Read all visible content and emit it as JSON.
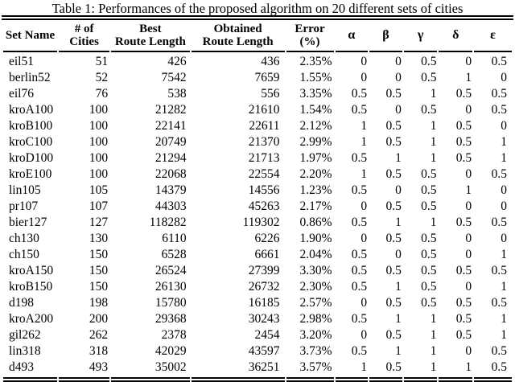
{
  "caption": "Table 1: Performances of the proposed algorithm on 20 different sets of cities",
  "chart_data": {
    "type": "table",
    "title": "Table 1: Performances of the proposed algorithm on 20 different sets of cities",
    "columns": [
      "Set Name",
      "# of Cities",
      "Best Route Length",
      "Obtained Route Length",
      "Error (%)",
      "α",
      "β",
      "γ",
      "δ",
      "ε"
    ],
    "rows": [
      [
        "eil51",
        51,
        426,
        436,
        "2.35%",
        0,
        0,
        0.5,
        0,
        0.5
      ],
      [
        "berlin52",
        52,
        7542,
        7659,
        "1.55%",
        0,
        0,
        0.5,
        1,
        0
      ],
      [
        "eil76",
        76,
        538,
        556,
        "3.35%",
        0.5,
        0.5,
        1,
        0.5,
        0.5
      ],
      [
        "kroA100",
        100,
        21282,
        21610,
        "1.54%",
        0.5,
        0,
        0.5,
        0,
        0.5
      ],
      [
        "kroB100",
        100,
        22141,
        22611,
        "2.12%",
        1,
        0.5,
        1,
        0.5,
        0
      ],
      [
        "kroC100",
        100,
        20749,
        21370,
        "2.99%",
        1,
        0.5,
        1,
        0.5,
        1
      ],
      [
        "kroD100",
        100,
        21294,
        21713,
        "1.97%",
        0.5,
        1,
        1,
        0.5,
        1
      ],
      [
        "kroE100",
        100,
        22068,
        22554,
        "2.20%",
        1,
        0.5,
        0.5,
        0,
        0.5
      ],
      [
        "lin105",
        105,
        14379,
        14556,
        "1.23%",
        0.5,
        0,
        0.5,
        1,
        0
      ],
      [
        "pr107",
        107,
        44303,
        45263,
        "2.17%",
        0,
        0.5,
        0.5,
        0,
        0
      ],
      [
        "bier127",
        127,
        118282,
        119302,
        "0.86%",
        0.5,
        1,
        1,
        0.5,
        0.5
      ],
      [
        "ch130",
        130,
        6110,
        6226,
        "1.90%",
        0,
        0.5,
        0.5,
        0,
        0
      ],
      [
        "ch150",
        150,
        6528,
        6661,
        "2.04%",
        0.5,
        0,
        0.5,
        0,
        1
      ],
      [
        "kroA150",
        150,
        26524,
        27399,
        "3.30%",
        0.5,
        0.5,
        0.5,
        0.5,
        0.5
      ],
      [
        "kroB150",
        150,
        26130,
        26732,
        "2.30%",
        0.5,
        1,
        0.5,
        0,
        1
      ],
      [
        "d198",
        198,
        15780,
        16185,
        "2.57%",
        0,
        0.5,
        0.5,
        0.5,
        0.5
      ],
      [
        "kroA200",
        200,
        29368,
        30243,
        "2.98%",
        0.5,
        1,
        1,
        0.5,
        1
      ],
      [
        "gil262",
        262,
        2378,
        2454,
        "3.20%",
        0,
        0.5,
        1,
        0.5,
        1
      ],
      [
        "lin318",
        318,
        42029,
        43597,
        "3.73%",
        0.5,
        1,
        1,
        0,
        0.5
      ],
      [
        "d493",
        493,
        35002,
        36251,
        "3.57%",
        1,
        0.5,
        1,
        1,
        0.5
      ]
    ]
  },
  "table": {
    "columns": [
      {
        "id": "set-name",
        "greek": false,
        "lines": [
          "Set Name"
        ]
      },
      {
        "id": "num-cities",
        "greek": false,
        "lines": [
          "# of",
          "Cities"
        ]
      },
      {
        "id": "best-route-length",
        "greek": false,
        "lines": [
          "Best",
          "Route Length"
        ]
      },
      {
        "id": "obtained-route-length",
        "greek": false,
        "lines": [
          "Obtained",
          "Route Length"
        ]
      },
      {
        "id": "error-percent",
        "greek": false,
        "lines": [
          "Error",
          "(%)"
        ]
      },
      {
        "id": "alpha",
        "greek": true,
        "lines": [
          "α"
        ]
      },
      {
        "id": "beta",
        "greek": true,
        "lines": [
          "β"
        ]
      },
      {
        "id": "gamma",
        "greek": true,
        "lines": [
          "γ"
        ]
      },
      {
        "id": "delta",
        "greek": true,
        "lines": [
          "δ"
        ]
      },
      {
        "id": "epsilon",
        "greek": true,
        "lines": [
          "ε"
        ]
      }
    ],
    "rows": [
      [
        "eil51",
        "51",
        "426",
        "436",
        "2.35%",
        "0",
        "0",
        "0.5",
        "0",
        "0.5"
      ],
      [
        "berlin52",
        "52",
        "7542",
        "7659",
        "1.55%",
        "0",
        "0",
        "0.5",
        "1",
        "0"
      ],
      [
        "eil76",
        "76",
        "538",
        "556",
        "3.35%",
        "0.5",
        "0.5",
        "1",
        "0.5",
        "0.5"
      ],
      [
        "kroA100",
        "100",
        "21282",
        "21610",
        "1.54%",
        "0.5",
        "0",
        "0.5",
        "0",
        "0.5"
      ],
      [
        "kroB100",
        "100",
        "22141",
        "22611",
        "2.12%",
        "1",
        "0.5",
        "1",
        "0.5",
        "0"
      ],
      [
        "kroC100",
        "100",
        "20749",
        "21370",
        "2.99%",
        "1",
        "0.5",
        "1",
        "0.5",
        "1"
      ],
      [
        "kroD100",
        "100",
        "21294",
        "21713",
        "1.97%",
        "0.5",
        "1",
        "1",
        "0.5",
        "1"
      ],
      [
        "kroE100",
        "100",
        "22068",
        "22554",
        "2.20%",
        "1",
        "0.5",
        "0.5",
        "0",
        "0.5"
      ],
      [
        "lin105",
        "105",
        "14379",
        "14556",
        "1.23%",
        "0.5",
        "0",
        "0.5",
        "1",
        "0"
      ],
      [
        "pr107",
        "107",
        "44303",
        "45263",
        "2.17%",
        "0",
        "0.5",
        "0.5",
        "0",
        "0"
      ],
      [
        "bier127",
        "127",
        "118282",
        "119302",
        "0.86%",
        "0.5",
        "1",
        "1",
        "0.5",
        "0.5"
      ],
      [
        "ch130",
        "130",
        "6110",
        "6226",
        "1.90%",
        "0",
        "0.5",
        "0.5",
        "0",
        "0"
      ],
      [
        "ch150",
        "150",
        "6528",
        "6661",
        "2.04%",
        "0.5",
        "0",
        "0.5",
        "0",
        "1"
      ],
      [
        "kroA150",
        "150",
        "26524",
        "27399",
        "3.30%",
        "0.5",
        "0.5",
        "0.5",
        "0.5",
        "0.5"
      ],
      [
        "kroB150",
        "150",
        "26130",
        "26732",
        "2.30%",
        "0.5",
        "1",
        "0.5",
        "0",
        "1"
      ],
      [
        "d198",
        "198",
        "15780",
        "16185",
        "2.57%",
        "0",
        "0.5",
        "0.5",
        "0.5",
        "0.5"
      ],
      [
        "kroA200",
        "200",
        "29368",
        "30243",
        "2.98%",
        "0.5",
        "1",
        "1",
        "0.5",
        "1"
      ],
      [
        "gil262",
        "262",
        "2378",
        "2454",
        "3.20%",
        "0",
        "0.5",
        "1",
        "0.5",
        "1"
      ],
      [
        "lin318",
        "318",
        "42029",
        "43597",
        "3.73%",
        "0.5",
        "1",
        "1",
        "0",
        "0.5"
      ],
      [
        "d493",
        "493",
        "35002",
        "36251",
        "3.57%",
        "1",
        "0.5",
        "1",
        "1",
        "0.5"
      ]
    ]
  }
}
